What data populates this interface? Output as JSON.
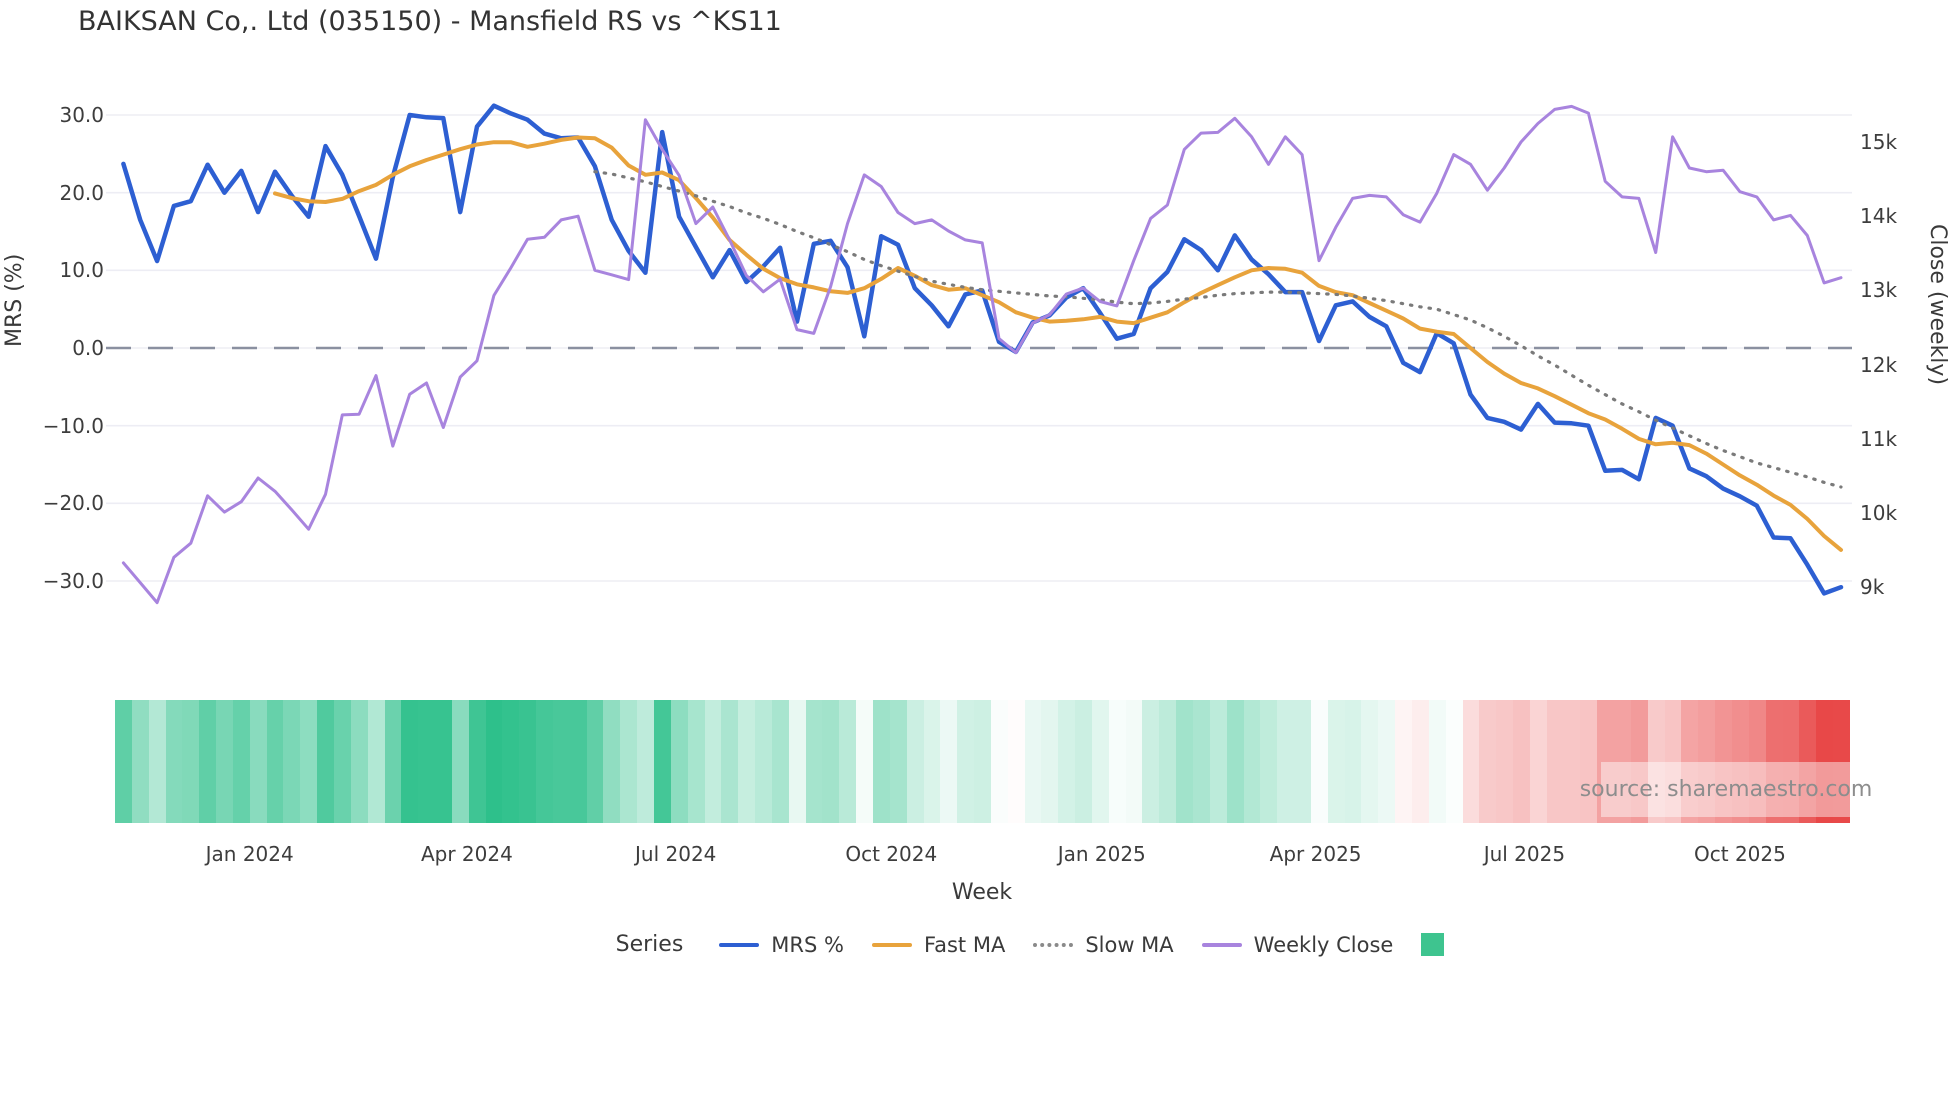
{
  "title": "BAIKSAN Co,. Ltd (035150) - Mansfield RS vs ^KS11",
  "watermark": "source: sharemaestro.com",
  "axes": {
    "left": {
      "label": "MRS (%)"
    },
    "right": {
      "label": "Close (weekly)"
    },
    "x": {
      "label": "Week"
    }
  },
  "legend": {
    "heading": "Series",
    "items": [
      {
        "label": "MRS %",
        "swatch": "line",
        "color": "#2d5fd2"
      },
      {
        "label": "Fast MA",
        "swatch": "line",
        "color": "#e8a33c"
      },
      {
        "label": "Slow MA",
        "swatch": "dotted",
        "color": "#8a8a8a"
      },
      {
        "label": "Weekly Close",
        "swatch": "line",
        "color": "#a884de"
      },
      {
        "label": "",
        "swatch": "square",
        "color": "#3ec48f"
      }
    ]
  },
  "chart_data": {
    "type": "line",
    "title": "BAIKSAN Co,. Ltd (035150) - Mansfield RS vs ^KS11",
    "xlabel": "Week",
    "ylabel_left": "MRS (%)",
    "ylabel_right": "Close (weekly)",
    "grid": true,
    "legend_position": "bottom",
    "x_range_weeks": 103,
    "x_ticks": [
      {
        "label": "Jan 2024",
        "week": 7.5
      },
      {
        "label": "Apr 2024",
        "week": 20.4
      },
      {
        "label": "Jul 2024",
        "week": 32.8
      },
      {
        "label": "Oct 2024",
        "week": 45.6
      },
      {
        "label": "Jan 2025",
        "week": 58.1
      },
      {
        "label": "Apr 2025",
        "week": 70.8
      },
      {
        "label": "Jul 2025",
        "week": 83.2
      },
      {
        "label": "Oct 2025",
        "week": 96.0
      }
    ],
    "y_ticks_left": [
      {
        "label": "30.0",
        "value": 30
      },
      {
        "label": "20.0",
        "value": 20
      },
      {
        "label": "10.0",
        "value": 10
      },
      {
        "label": "0.0",
        "value": 0
      },
      {
        "label": "−10.0",
        "value": -10
      },
      {
        "label": "−20.0",
        "value": -20
      },
      {
        "label": "−30.0",
        "value": -30
      }
    ],
    "y_ticks_right": [
      {
        "label": "15k",
        "value": 15000
      },
      {
        "label": "14k",
        "value": 14000
      },
      {
        "label": "13k",
        "value": 13000
      },
      {
        "label": "12k",
        "value": 12000
      },
      {
        "label": "11k",
        "value": 11000
      },
      {
        "label": "10k",
        "value": 10000
      },
      {
        "label": "9k",
        "value": 9000
      }
    ],
    "zero_line": {
      "value": 0,
      "style": "dashed",
      "color": "#8a90a0"
    },
    "series": [
      {
        "name": "MRS %",
        "axis": "left",
        "color": "#2d5fd2",
        "style": "solid",
        "width": 4.5,
        "values": [
          23.7,
          16.5,
          11.2,
          18.3,
          18.9,
          23.6,
          20.0,
          22.8,
          17.5,
          22.7,
          19.6,
          16.9,
          26.0,
          22.3,
          17.0,
          11.5,
          22.0,
          30.0,
          29.7,
          29.6,
          17.5,
          28.5,
          31.2,
          30.2,
          29.4,
          27.6,
          27.0,
          27.1,
          23.4,
          16.5,
          12.5,
          9.7,
          27.8,
          16.9,
          13.0,
          9.1,
          12.6,
          8.5,
          10.5,
          12.9,
          3.4,
          13.4,
          13.8,
          10.4,
          1.5,
          14.4,
          13.3,
          7.7,
          5.5,
          2.8,
          6.9,
          7.4,
          0.8,
          -0.5,
          3.3,
          4.2,
          6.5,
          7.7,
          4.5,
          1.2,
          1.8,
          7.7,
          9.8,
          14.0,
          12.6,
          10.0,
          14.5,
          11.4,
          9.5,
          7.2,
          7.2,
          0.9,
          5.5,
          6.0,
          4.0,
          2.8,
          -1.9,
          -3.1,
          1.9,
          0.6,
          -6.0,
          -9.0,
          -9.5,
          -10.5,
          -7.2,
          -9.6,
          -9.7,
          -10.0,
          -15.8,
          -15.7,
          -16.9,
          -9.0,
          -10.0,
          -15.5,
          -16.5,
          -18.1,
          -19.1,
          -20.3,
          -24.4,
          -24.5,
          -27.9,
          -31.6,
          -30.8
        ]
      },
      {
        "name": "Fast MA",
        "axis": "left",
        "color": "#e8a33c",
        "style": "solid",
        "width": 4,
        "values": [
          null,
          null,
          null,
          null,
          null,
          null,
          null,
          null,
          null,
          19.9,
          19.3,
          18.9,
          18.8,
          19.2,
          20.2,
          21.0,
          22.3,
          23.4,
          24.2,
          24.9,
          25.6,
          26.2,
          26.5,
          26.5,
          25.9,
          26.3,
          26.8,
          27.1,
          27.0,
          25.8,
          23.5,
          22.3,
          22.6,
          21.6,
          19.3,
          16.8,
          13.9,
          12.0,
          10.2,
          9.0,
          8.2,
          7.8,
          7.3,
          7.1,
          7.7,
          8.9,
          10.3,
          9.3,
          8.1,
          7.5,
          7.7,
          6.8,
          5.9,
          4.6,
          3.9,
          3.4,
          3.5,
          3.7,
          4.0,
          3.4,
          3.2,
          3.9,
          4.6,
          5.9,
          7.1,
          8.1,
          9.1,
          10.0,
          10.3,
          10.2,
          9.7,
          8.0,
          7.2,
          6.8,
          5.8,
          4.8,
          3.8,
          2.5,
          2.1,
          1.8,
          0.0,
          -1.8,
          -3.3,
          -4.5,
          -5.2,
          -6.2,
          -7.3,
          -8.4,
          -9.2,
          -10.4,
          -11.7,
          -12.4,
          -12.2,
          -12.5,
          -13.6,
          -15.0,
          -16.4,
          -17.6,
          -19.0,
          -20.2,
          -22.0,
          -24.2,
          -26.0
        ]
      },
      {
        "name": "Slow MA",
        "axis": "left",
        "color": "#7a7a7a",
        "style": "dotted",
        "width": 3.2,
        "values": [
          null,
          null,
          null,
          null,
          null,
          null,
          null,
          null,
          null,
          null,
          null,
          null,
          null,
          null,
          null,
          null,
          null,
          null,
          null,
          null,
          null,
          null,
          null,
          null,
          null,
          null,
          null,
          null,
          22.7,
          22.4,
          21.9,
          21.4,
          20.8,
          20.2,
          19.6,
          18.9,
          18.2,
          17.4,
          16.7,
          15.9,
          15.0,
          14.2,
          13.3,
          12.4,
          11.4,
          10.6,
          9.9,
          9.2,
          8.6,
          8.2,
          7.8,
          7.5,
          7.3,
          7.1,
          6.9,
          6.7,
          6.6,
          6.4,
          6.2,
          5.9,
          5.7,
          5.8,
          6.0,
          6.3,
          6.5,
          6.8,
          7.0,
          7.1,
          7.2,
          7.2,
          7.1,
          7.0,
          6.9,
          6.7,
          6.4,
          6.1,
          5.7,
          5.3,
          5.0,
          4.3,
          3.6,
          2.6,
          1.5,
          0.3,
          -1.0,
          -2.2,
          -3.5,
          -4.8,
          -6.0,
          -7.2,
          -8.2,
          -9.3,
          -10.3,
          -11.3,
          -12.3,
          -13.2,
          -14.0,
          -14.8,
          -15.4,
          -16.0,
          -16.6,
          -17.3,
          -17.9
        ]
      },
      {
        "name": "Weekly Close",
        "axis": "right",
        "color": "#a884de",
        "style": "solid",
        "width": 3,
        "values": [
          9325,
          9060,
          8790,
          9400,
          9590,
          10230,
          10010,
          10150,
          10470,
          10290,
          10040,
          9780,
          10250,
          11320,
          11330,
          11850,
          10900,
          11600,
          11750,
          11150,
          11830,
          12050,
          12930,
          13300,
          13690,
          13715,
          13950,
          14000,
          13270,
          13210,
          13145,
          15300,
          14900,
          14550,
          13900,
          14124,
          13680,
          13200,
          12980,
          13150,
          12470,
          12420,
          13050,
          13900,
          14556,
          14400,
          14050,
          13900,
          13950,
          13800,
          13680,
          13640,
          12350,
          12160,
          12560,
          12670,
          12950,
          13030,
          12850,
          12790,
          13400,
          13970,
          14150,
          14900,
          15120,
          15130,
          15320,
          15070,
          14700,
          15070,
          14830,
          13400,
          13850,
          14240,
          14280,
          14260,
          14020,
          13920,
          14310,
          14830,
          14700,
          14350,
          14650,
          15000,
          15250,
          15440,
          15480,
          15390,
          14470,
          14260,
          14240,
          13510,
          15070,
          14650,
          14600,
          14620,
          14330,
          14260,
          13950,
          14010,
          13740,
          13100,
          13170
        ]
      }
    ],
    "heatmap_strip": {
      "derived_from": "MRS %",
      "positive_color": "#2ec08b",
      "negative_color": "#e84848",
      "max_abs_value": 31
    }
  }
}
